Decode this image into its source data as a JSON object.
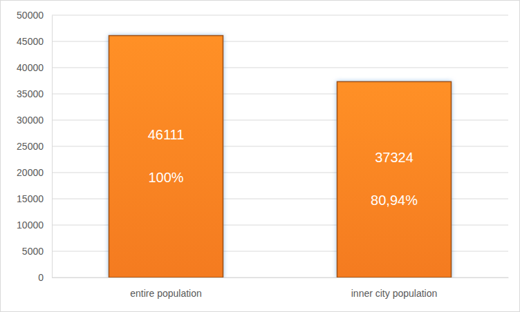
{
  "chart_data": {
    "type": "bar",
    "categories": [
      "entire population",
      "inner city population"
    ],
    "values": [
      46111,
      37324
    ],
    "shares": [
      100,
      80.94
    ],
    "share_labels": [
      "100%",
      "80,94%"
    ],
    "color": "#f47b20",
    "ylim": [
      0,
      50000
    ],
    "yticks": [
      0,
      5000,
      10000,
      15000,
      20000,
      25000,
      30000,
      35000,
      40000,
      45000,
      50000
    ],
    "grid": true,
    "data_labels": true
  }
}
